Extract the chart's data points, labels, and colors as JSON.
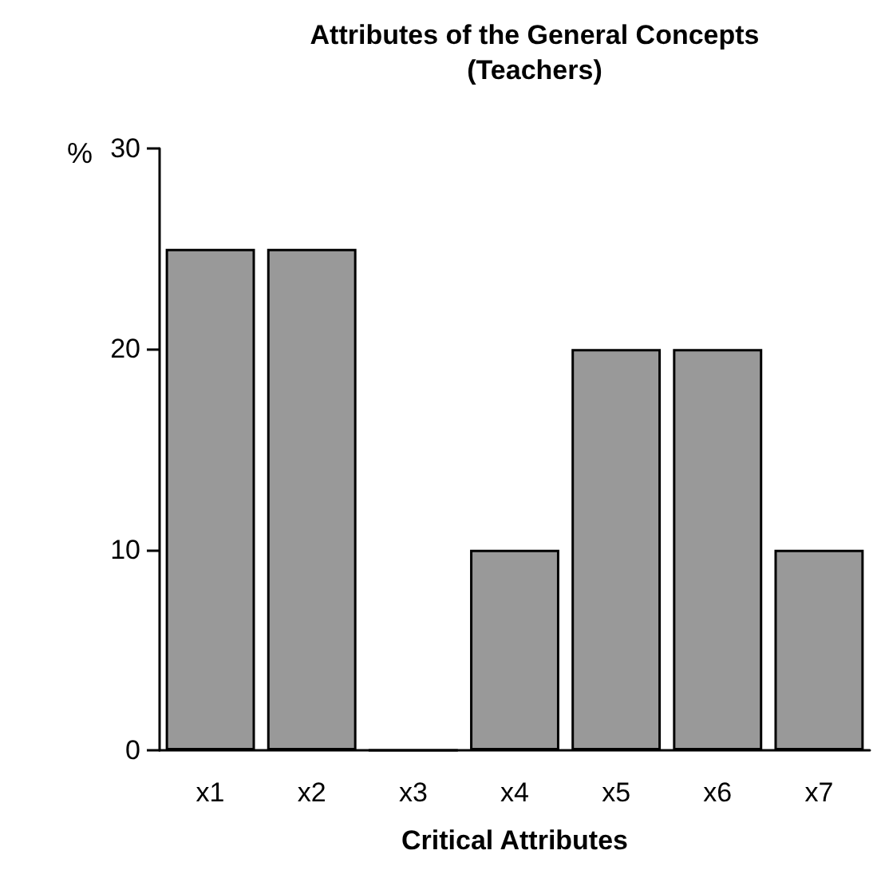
{
  "chart_data": {
    "type": "bar",
    "title": "Attributes of the General Concepts\n(Teachers)",
    "xlabel": "Critical Attributes",
    "ylabel": "%",
    "categories": [
      "x1",
      "x2",
      "x3",
      "x4",
      "x5",
      "x6",
      "x7"
    ],
    "values": [
      25,
      25,
      0,
      10,
      20,
      20,
      10
    ],
    "color": "#999999",
    "ylim": [
      0,
      30
    ],
    "yticks": [
      0,
      10,
      20,
      30
    ],
    "grid": false
  }
}
